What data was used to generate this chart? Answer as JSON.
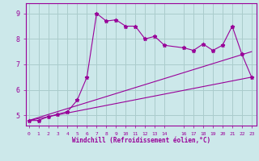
{
  "xlabel": "Windchill (Refroidissement éolien,°C)",
  "bg_color": "#cce8ea",
  "line_color": "#990099",
  "grid_color": "#aacccc",
  "x_ticks": [
    0,
    1,
    2,
    3,
    4,
    5,
    6,
    7,
    8,
    9,
    10,
    11,
    12,
    13,
    14,
    16,
    17,
    18,
    19,
    20,
    21,
    22,
    23
  ],
  "y_ticks": [
    5,
    6,
    7,
    8,
    9
  ],
  "ylim": [
    4.6,
    9.4
  ],
  "xlim": [
    -0.3,
    23.5
  ],
  "main_x": [
    0,
    1,
    2,
    3,
    4,
    5,
    6,
    7,
    8,
    9,
    10,
    11,
    12,
    13,
    14,
    16,
    17,
    18,
    19,
    20,
    21,
    22,
    23
  ],
  "main_y": [
    4.8,
    4.8,
    4.95,
    5.05,
    5.15,
    5.6,
    6.5,
    9.0,
    8.7,
    8.75,
    8.5,
    8.5,
    8.0,
    8.1,
    7.75,
    7.65,
    7.55,
    7.8,
    7.55,
    7.75,
    8.5,
    7.4,
    6.5
  ],
  "line1_x": [
    0,
    23
  ],
  "line1_y": [
    4.8,
    7.5
  ],
  "line2_x": [
    0,
    23
  ],
  "line2_y": [
    4.8,
    6.5
  ]
}
